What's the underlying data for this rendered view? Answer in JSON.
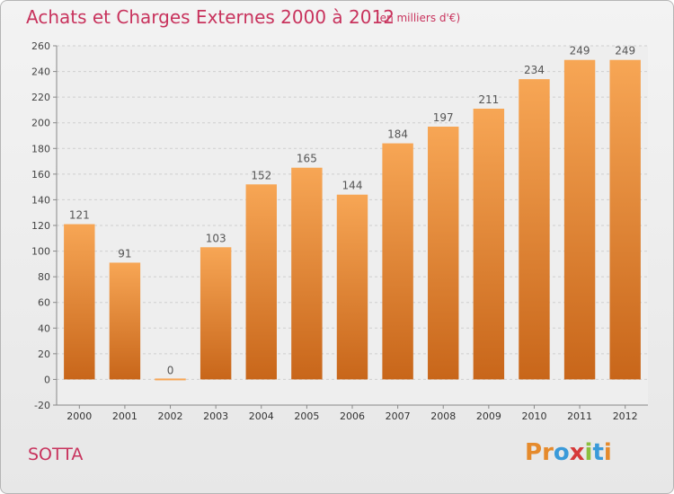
{
  "title": "Achats et Charges Externes 2000 à 2012",
  "subtitle": "(en milliers d'€)",
  "place": "SOTTA",
  "logo": {
    "text": "Proxiti",
    "letters": [
      {
        "ch": "P",
        "color": "#e58a2c"
      },
      {
        "ch": "r",
        "color": "#e58a2c"
      },
      {
        "ch": "o",
        "color": "#3a9ad9"
      },
      {
        "ch": "x",
        "color": "#d63a3a"
      },
      {
        "ch": "i",
        "color": "#8cbf3f"
      },
      {
        "ch": "t",
        "color": "#3a9ad9"
      },
      {
        "ch": "i",
        "color": "#e58a2c"
      }
    ]
  },
  "colors": {
    "bar_light": "#f7a655",
    "bar_dark": "#c8661a",
    "title": "#c8335d",
    "grid": "#cfcfcf"
  },
  "chart_data": {
    "type": "bar",
    "title": "Achats et Charges Externes 2000 à 2012",
    "subtitle": "(en milliers d'€)",
    "xlabel": "",
    "ylabel": "",
    "categories": [
      "2000",
      "2001",
      "2002",
      "2003",
      "2004",
      "2005",
      "2006",
      "2007",
      "2008",
      "2009",
      "2010",
      "2011",
      "2012"
    ],
    "values": [
      121,
      91,
      0,
      103,
      152,
      165,
      144,
      184,
      197,
      211,
      234,
      249,
      249
    ],
    "ylim": [
      -20,
      260
    ],
    "yticks": [
      -20,
      0,
      20,
      40,
      60,
      80,
      100,
      120,
      140,
      160,
      180,
      200,
      220,
      240,
      260
    ],
    "grid": "horizontal dashed",
    "legend": "none"
  }
}
